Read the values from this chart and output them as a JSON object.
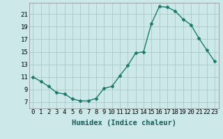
{
  "x": [
    0,
    1,
    2,
    3,
    4,
    5,
    6,
    7,
    8,
    9,
    10,
    11,
    12,
    13,
    14,
    15,
    16,
    17,
    18,
    19,
    20,
    21,
    22,
    23
  ],
  "y": [
    11.0,
    10.3,
    9.5,
    8.5,
    8.3,
    7.5,
    7.2,
    7.2,
    7.6,
    9.2,
    9.5,
    11.2,
    12.8,
    14.8,
    15.0,
    19.5,
    22.2,
    22.1,
    21.5,
    20.2,
    19.3,
    17.2,
    15.3,
    13.5
  ],
  "xlabel": "Humidex (Indice chaleur)",
  "xlim": [
    -0.5,
    23.5
  ],
  "ylim": [
    6.0,
    22.8
  ],
  "xticks": [
    0,
    1,
    2,
    3,
    4,
    5,
    6,
    7,
    8,
    9,
    10,
    11,
    12,
    13,
    14,
    15,
    16,
    17,
    18,
    19,
    20,
    21,
    22,
    23
  ],
  "yticks": [
    7,
    9,
    11,
    13,
    15,
    17,
    19,
    21
  ],
  "bg_color": "#cce8e8",
  "grid_color": "#aac8c8",
  "line_color": "#1a7a6a",
  "marker": "D",
  "marker_size": 2.5,
  "line_width": 1.0,
  "xlabel_fontsize": 7.5,
  "tick_fontsize": 6.5
}
